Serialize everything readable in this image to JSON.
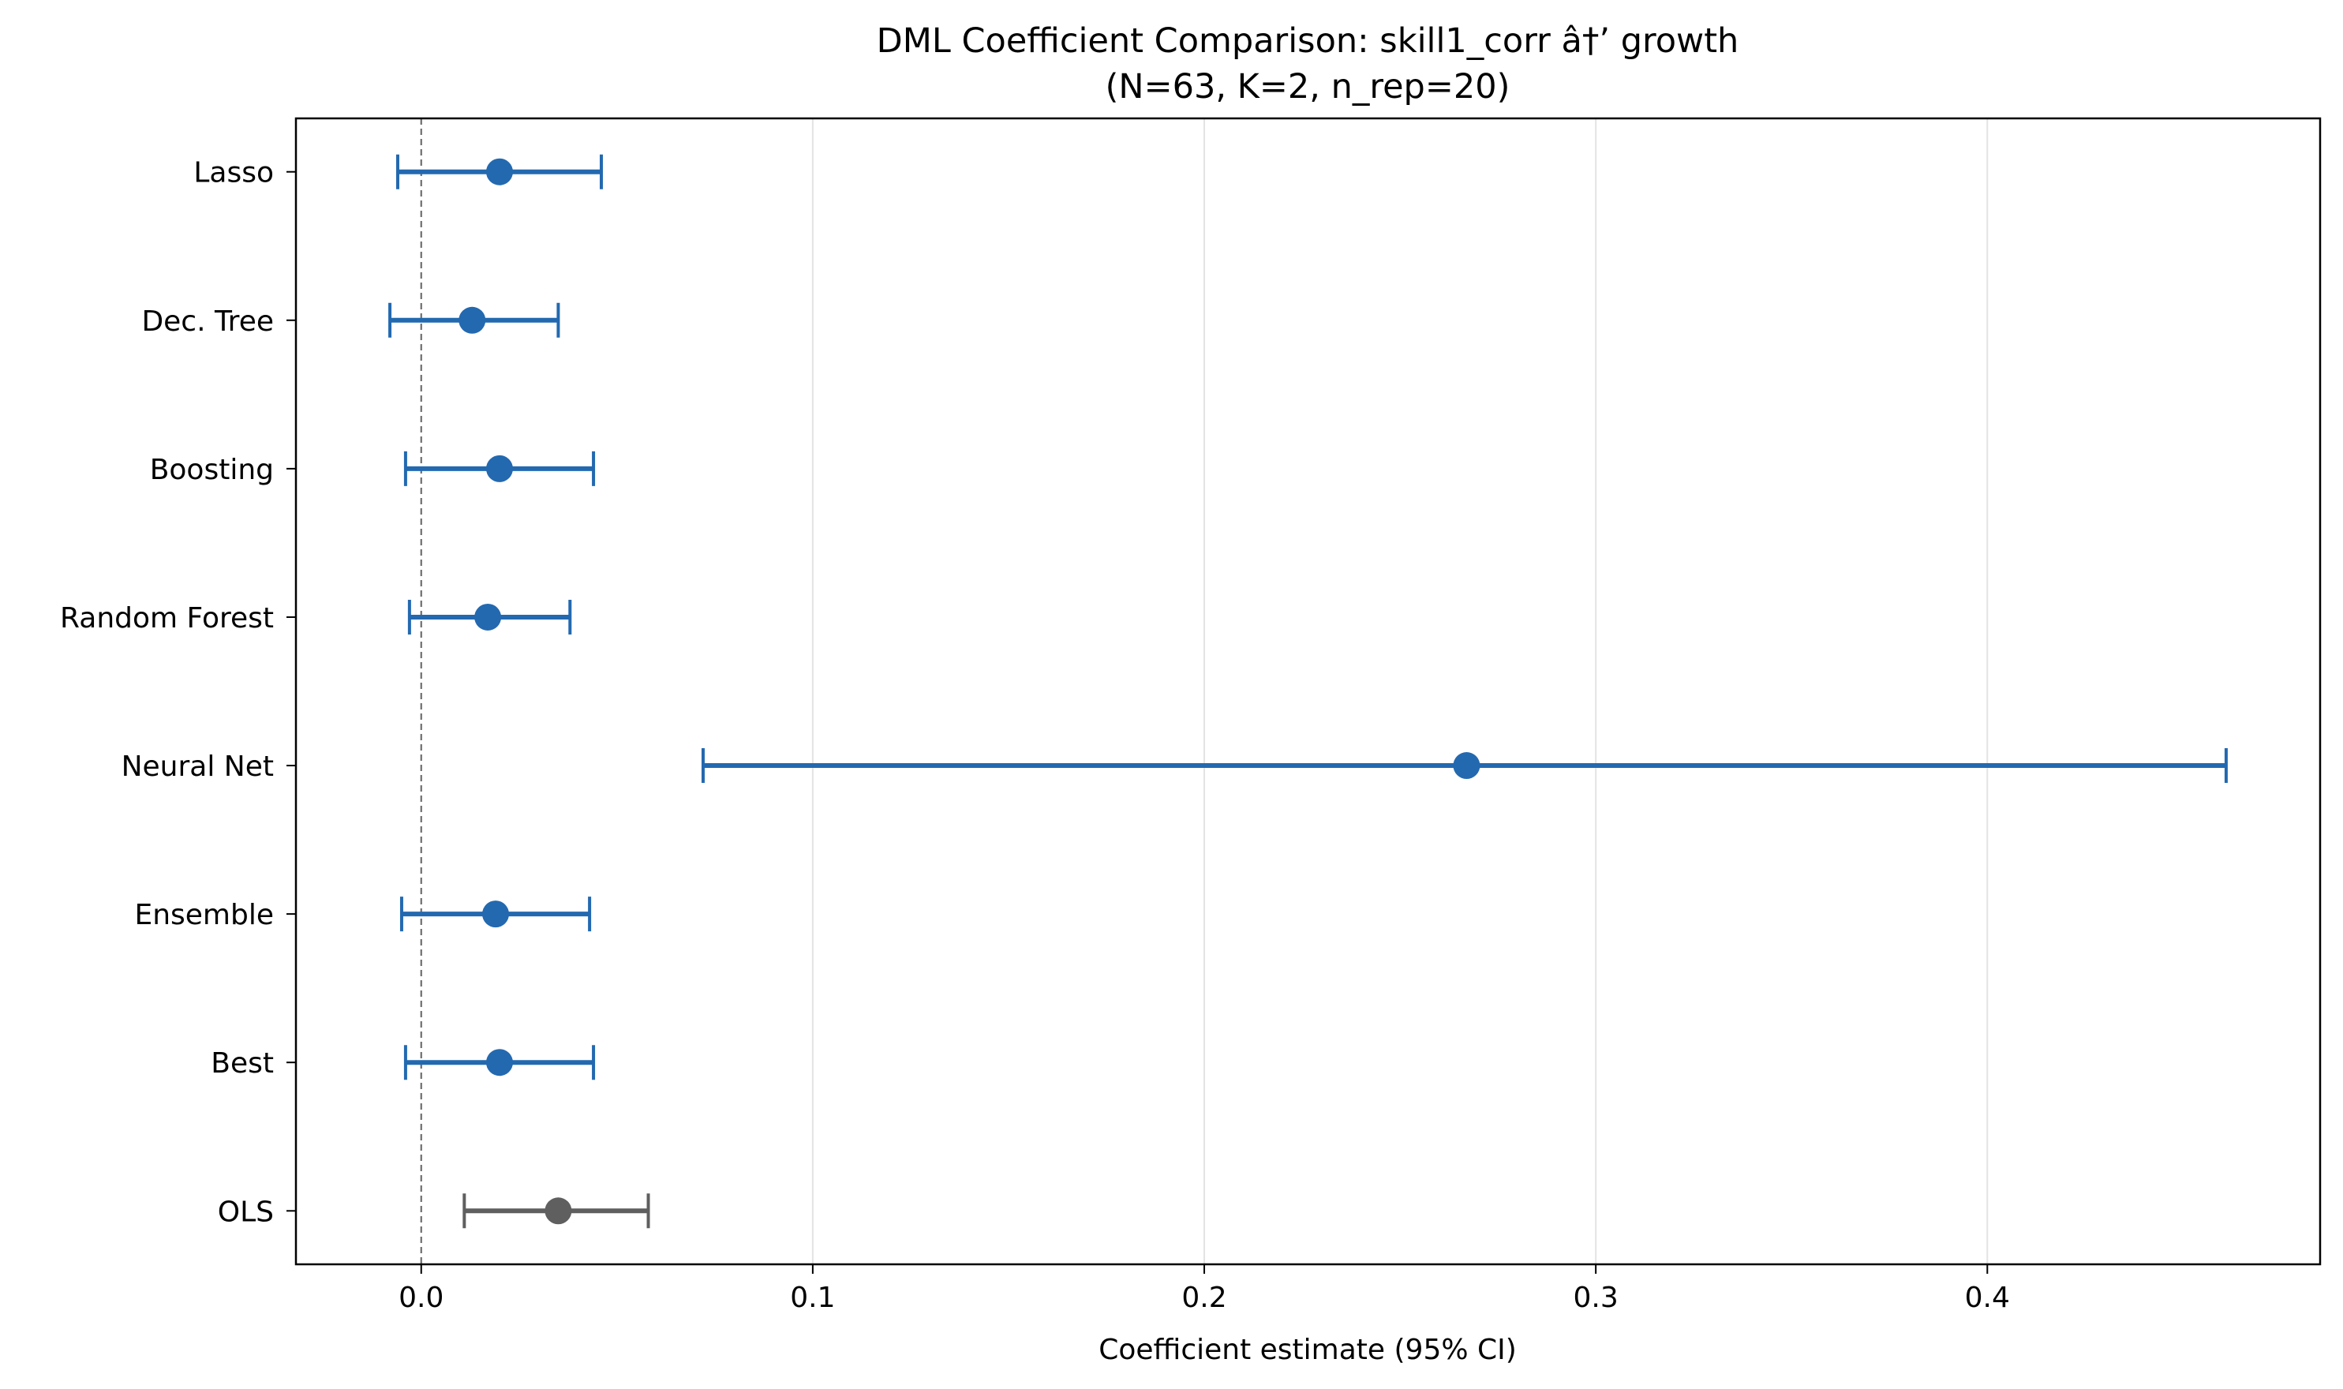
{
  "chart_data": {
    "type": "errorbar",
    "title": "DML Coefficient Comparison: skill1_corr â†’ growth",
    "subtitle": "(N=63, K=2, n_rep=20)",
    "xlabel": "Coefficient estimate (95% CI)",
    "ylabel": "",
    "xlim": [
      -0.032,
      0.485
    ],
    "xticks": [
      0.0,
      0.1,
      0.2,
      0.3,
      0.4
    ],
    "xtick_labels": [
      "0.0",
      "0.1",
      "0.2",
      "0.3",
      "0.4"
    ],
    "grid": "vertical",
    "reference_line": 0.0,
    "series": [
      {
        "name": "Lasso",
        "estimate": 0.02,
        "ci_low": -0.006,
        "ci_high": 0.046,
        "color": "#2369b0"
      },
      {
        "name": "Dec. Tree",
        "estimate": 0.013,
        "ci_low": -0.008,
        "ci_high": 0.035,
        "color": "#2369b0"
      },
      {
        "name": "Boosting",
        "estimate": 0.02,
        "ci_low": -0.004,
        "ci_high": 0.044,
        "color": "#2369b0"
      },
      {
        "name": "Random Forest",
        "estimate": 0.017,
        "ci_low": -0.003,
        "ci_high": 0.038,
        "color": "#2369b0"
      },
      {
        "name": "Neural Net",
        "estimate": 0.267,
        "ci_low": 0.072,
        "ci_high": 0.461,
        "color": "#2369b0"
      },
      {
        "name": "Ensemble",
        "estimate": 0.019,
        "ci_low": -0.005,
        "ci_high": 0.043,
        "color": "#2369b0"
      },
      {
        "name": "Best",
        "estimate": 0.02,
        "ci_low": -0.004,
        "ci_high": 0.044,
        "color": "#2369b0"
      },
      {
        "name": "OLS",
        "estimate": 0.035,
        "ci_low": 0.011,
        "ci_high": 0.058,
        "color": "#5f5f5f"
      }
    ]
  }
}
